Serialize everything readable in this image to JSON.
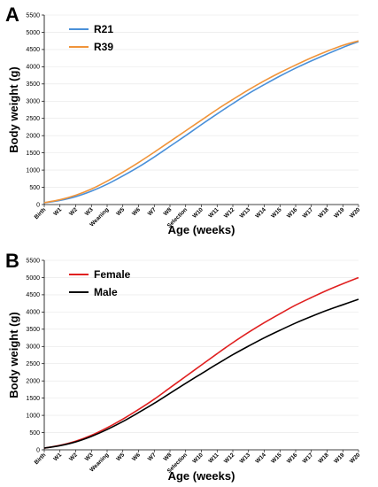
{
  "chart_data": [
    {
      "panel": "A",
      "type": "line",
      "xlabel": "Age (weeks)",
      "ylabel": "Body weight (g)",
      "ylim": [
        0,
        5500
      ],
      "yticks": [
        0,
        500,
        1000,
        1500,
        2000,
        2500,
        3000,
        3500,
        4000,
        4500,
        5000,
        5500
      ],
      "categories": [
        "Birth",
        "W1",
        "W2",
        "W3",
        "Weaning",
        "W5",
        "W6",
        "W7",
        "W8",
        "Selection",
        "W10",
        "W11",
        "W12",
        "W13",
        "W14",
        "W15",
        "W16",
        "W17",
        "W18",
        "W19",
        "W20"
      ],
      "legend_position": "top-left",
      "series": [
        {
          "name": "R21",
          "color": "#4a90d9",
          "values": [
            50,
            120,
            230,
            390,
            590,
            830,
            1090,
            1380,
            1690,
            2000,
            2320,
            2630,
            2930,
            3220,
            3480,
            3730,
            3960,
            4170,
            4370,
            4560,
            4730
          ]
        },
        {
          "name": "R39",
          "color": "#f0943a",
          "values": [
            55,
            140,
            270,
            450,
            680,
            940,
            1220,
            1520,
            1830,
            2140,
            2450,
            2760,
            3050,
            3330,
            3590,
            3830,
            4050,
            4260,
            4450,
            4620,
            4750
          ]
        }
      ]
    },
    {
      "panel": "B",
      "type": "line",
      "xlabel": "Age (weeks)",
      "ylabel": "Body weight (g)",
      "ylim": [
        0,
        5500
      ],
      "yticks": [
        0,
        500,
        1000,
        1500,
        2000,
        2500,
        3000,
        3500,
        4000,
        4500,
        5000,
        5500
      ],
      "categories": [
        "Birth",
        "W1",
        "W2",
        "W3",
        "Weaning",
        "W5",
        "W6",
        "W7",
        "W8",
        "Selection",
        "W10",
        "W11",
        "W12",
        "W13",
        "W14",
        "W15",
        "W16",
        "W17",
        "W18",
        "W19",
        "W20"
      ],
      "legend_position": "top-left",
      "series": [
        {
          "name": "Female",
          "color": "#e02020",
          "values": [
            50,
            130,
            250,
            420,
            640,
            890,
            1170,
            1470,
            1800,
            2130,
            2460,
            2790,
            3110,
            3410,
            3690,
            3950,
            4200,
            4420,
            4630,
            4820,
            5000
          ]
        },
        {
          "name": "Male",
          "color": "#000000",
          "values": [
            50,
            120,
            230,
            390,
            590,
            820,
            1080,
            1350,
            1640,
            1930,
            2210,
            2490,
            2760,
            3010,
            3250,
            3470,
            3680,
            3870,
            4050,
            4210,
            4370
          ]
        }
      ]
    }
  ]
}
